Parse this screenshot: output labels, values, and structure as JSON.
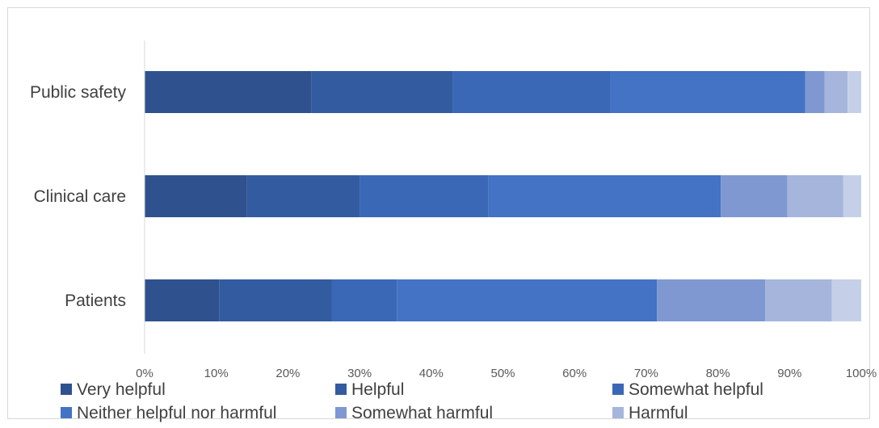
{
  "chart_data": {
    "type": "bar",
    "orientation": "horizontal",
    "stacked": "100%",
    "categories": [
      "Public safety",
      "Clinical care",
      "Patients"
    ],
    "series": [
      {
        "name": "Very helpful",
        "color": "#2f528f",
        "values": [
          23.3,
          14.3,
          10.4
        ]
      },
      {
        "name": "Helpful",
        "color": "#335ba0",
        "values": [
          19.7,
          15.7,
          15.7
        ]
      },
      {
        "name": "Somewhat helpful",
        "color": "#3a68b6",
        "values": [
          22.0,
          18.0,
          9.1
        ]
      },
      {
        "name": "Neither helpful nor harmful",
        "color": "#4472c4",
        "values": [
          27.2,
          32.4,
          36.3
        ]
      },
      {
        "name": "Somewhat harmful",
        "color": "#7f98d1",
        "values": [
          2.7,
          9.3,
          15.1
        ]
      },
      {
        "name": "Harmful",
        "color": "#a5b5dc",
        "values": [
          3.2,
          7.8,
          9.3
        ]
      },
      {
        "name": "",
        "color": "#c5d0e8",
        "values": [
          1.9,
          2.5,
          4.1
        ]
      }
    ],
    "xlim": [
      0,
      100
    ],
    "x_ticks": [
      "0%",
      "10%",
      "20%",
      "30%",
      "40%",
      "50%",
      "60%",
      "70%",
      "80%",
      "90%",
      "100%"
    ],
    "grid": false,
    "legend_position": "bottom"
  }
}
